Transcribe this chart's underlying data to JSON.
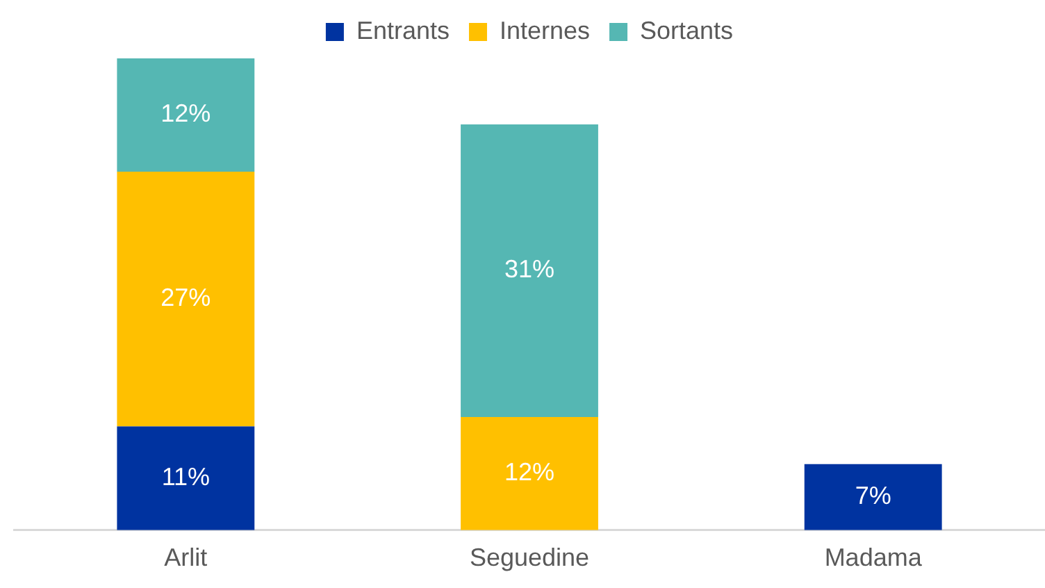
{
  "chart_data": {
    "type": "bar",
    "stacked": true,
    "categories": [
      "Arlit",
      "Seguedine",
      "Madama"
    ],
    "series": [
      {
        "name": "Entrants",
        "color": "#0033a0",
        "values": [
          11,
          null,
          7
        ],
        "value_labels": [
          "11%",
          null,
          "7%"
        ]
      },
      {
        "name": "Internes",
        "color": "#ffc000",
        "values": [
          27,
          12,
          null
        ],
        "value_labels": [
          "27%",
          "12%",
          null
        ]
      },
      {
        "name": "Sortants",
        "color": "#55b7b3",
        "values": [
          12,
          31,
          null
        ],
        "value_labels": [
          "12%",
          "31%",
          null
        ]
      }
    ],
    "legend": "top",
    "grid": false
  }
}
